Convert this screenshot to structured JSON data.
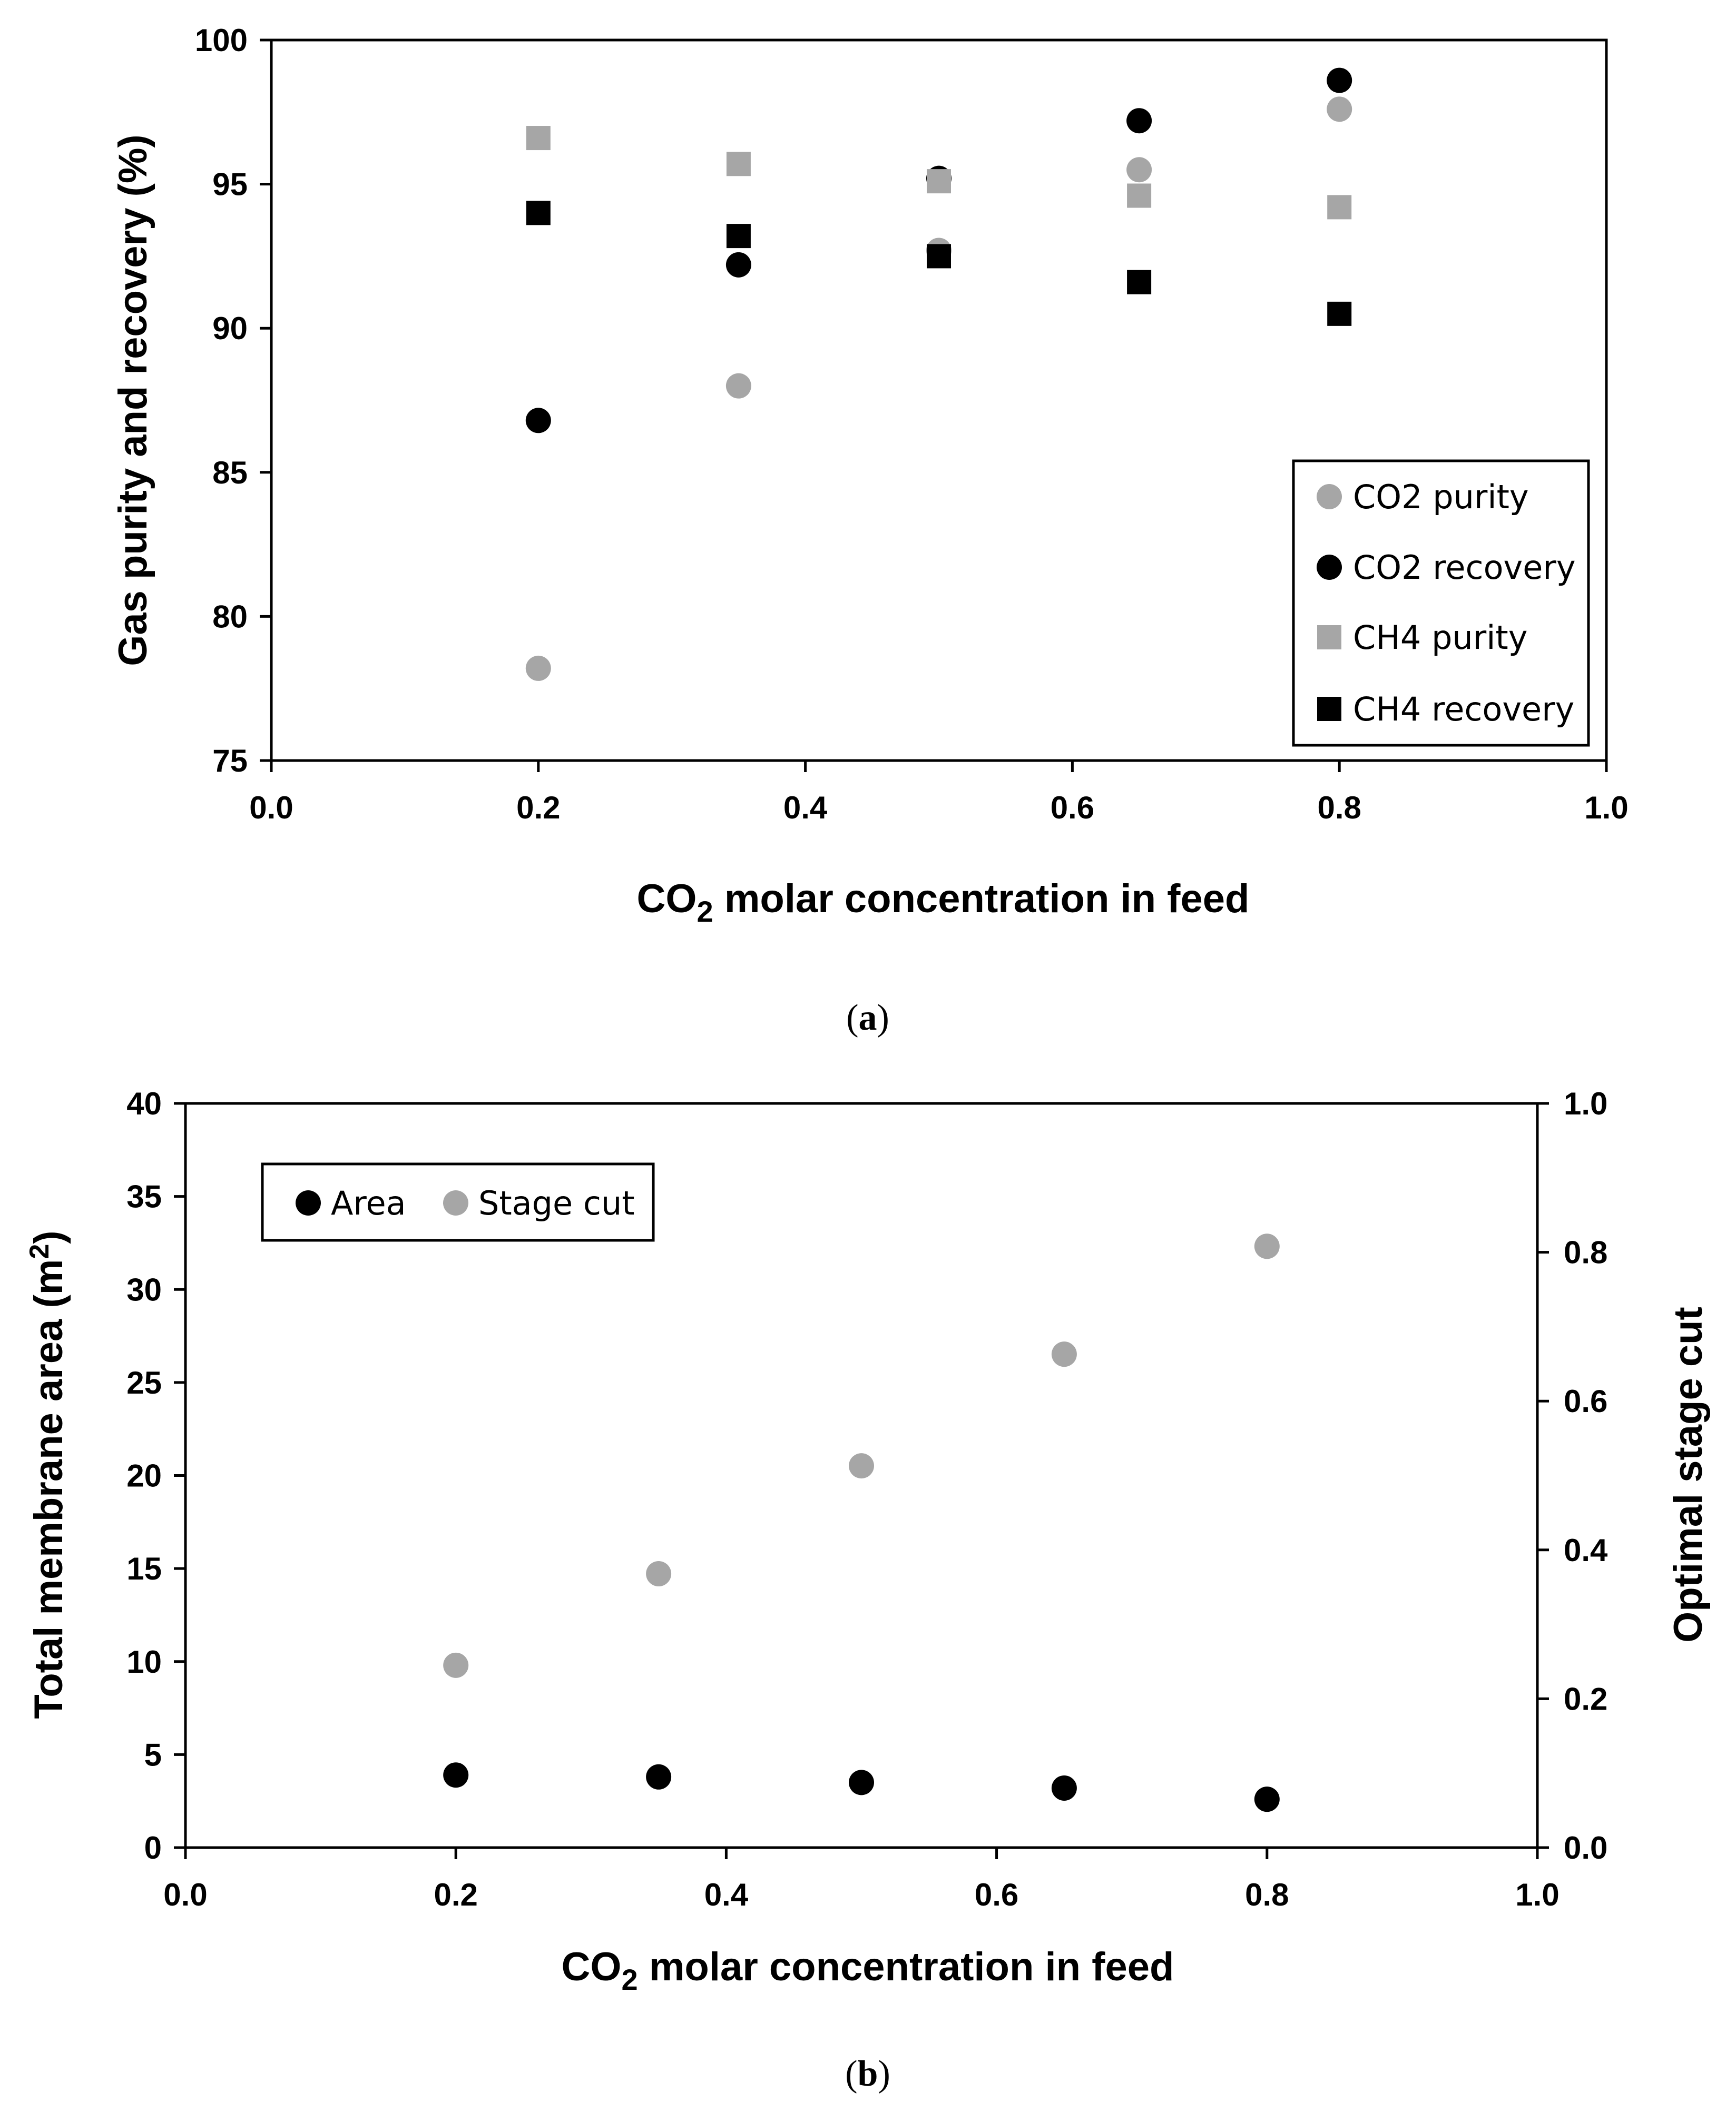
{
  "colors": {
    "gray": "#a6a6a6",
    "black": "#000000"
  },
  "chart_data": [
    {
      "id": "a",
      "type": "scatter",
      "caption": {
        "open": "(",
        "letter": "a",
        "close": ")"
      },
      "xlabel": {
        "pre": "CO",
        "sub": "2",
        "post": " molar concentration in feed"
      },
      "ylabel": "Gas purity and recovery (%)",
      "xlim": [
        0.0,
        1.0
      ],
      "ylim": [
        75,
        100
      ],
      "xticks": [
        0.0,
        0.2,
        0.4,
        0.6,
        0.8,
        1.0
      ],
      "xtick_labels": [
        "0.0",
        "0.2",
        "0.4",
        "0.6",
        "0.8",
        "1.0"
      ],
      "yticks": [
        75,
        80,
        85,
        90,
        95,
        100
      ],
      "ytick_labels": [
        "75",
        "80",
        "85",
        "90",
        "95",
        "100"
      ],
      "legend_position": "bottom-right",
      "series": [
        {
          "name": "CO2 purity",
          "marker": "circle",
          "color": "#a6a6a6",
          "x": [
            0.2,
            0.35,
            0.5,
            0.65,
            0.8
          ],
          "y": [
            78.2,
            88.0,
            92.7,
            95.5,
            97.6
          ]
        },
        {
          "name": "CO2 recovery",
          "marker": "circle",
          "color": "#000000",
          "x": [
            0.2,
            0.35,
            0.5,
            0.65,
            0.8
          ],
          "y": [
            86.8,
            92.2,
            95.2,
            97.2,
            98.6
          ]
        },
        {
          "name": "CH4 purity",
          "marker": "square",
          "color": "#a6a6a6",
          "x": [
            0.2,
            0.35,
            0.5,
            0.65,
            0.8
          ],
          "y": [
            96.6,
            95.7,
            95.1,
            94.6,
            94.2
          ]
        },
        {
          "name": "CH4 recovery",
          "marker": "square",
          "color": "#000000",
          "x": [
            0.2,
            0.35,
            0.5,
            0.65,
            0.8
          ],
          "y": [
            94.0,
            93.2,
            92.5,
            91.6,
            90.5
          ]
        }
      ]
    },
    {
      "id": "b",
      "type": "scatter",
      "caption": {
        "open": "(",
        "letter": "b",
        "close": ")"
      },
      "xlabel": {
        "pre": "CO",
        "sub": "2",
        "post": " molar concentration in feed"
      },
      "ylabel": {
        "pre": "Total membrane area (m",
        "sup": "2",
        "post": ")"
      },
      "y2label": "Optimal stage cut",
      "xlim": [
        0.0,
        1.0
      ],
      "ylim": [
        0,
        40
      ],
      "y2lim": [
        0.0,
        1.0
      ],
      "xticks": [
        0.0,
        0.2,
        0.4,
        0.6,
        0.8,
        1.0
      ],
      "xtick_labels": [
        "0.0",
        "0.2",
        "0.4",
        "0.6",
        "0.8",
        "1.0"
      ],
      "yticks": [
        0,
        5,
        10,
        15,
        20,
        25,
        30,
        35,
        40
      ],
      "ytick_labels": [
        "0",
        "5",
        "10",
        "15",
        "20",
        "25",
        "30",
        "35",
        "40"
      ],
      "y2ticks": [
        0.0,
        0.2,
        0.4,
        0.6,
        0.8,
        1.0
      ],
      "y2tick_labels": [
        "0.0",
        "0.2",
        "0.4",
        "0.6",
        "0.8",
        "1.0"
      ],
      "legend_position": "top-left",
      "series": [
        {
          "name": "Area",
          "marker": "circle",
          "color": "#000000",
          "axis": "left",
          "x": [
            0.2,
            0.35,
            0.5,
            0.65,
            0.8
          ],
          "y": [
            3.9,
            3.8,
            3.5,
            3.2,
            2.6
          ]
        },
        {
          "name": "Stage cut",
          "marker": "circle",
          "color": "#a6a6a6",
          "axis": "right",
          "x": [
            0.2,
            0.35,
            0.5,
            0.65,
            0.8
          ],
          "y": [
            0.245,
            0.368,
            0.513,
            0.663,
            0.808
          ]
        }
      ]
    }
  ]
}
